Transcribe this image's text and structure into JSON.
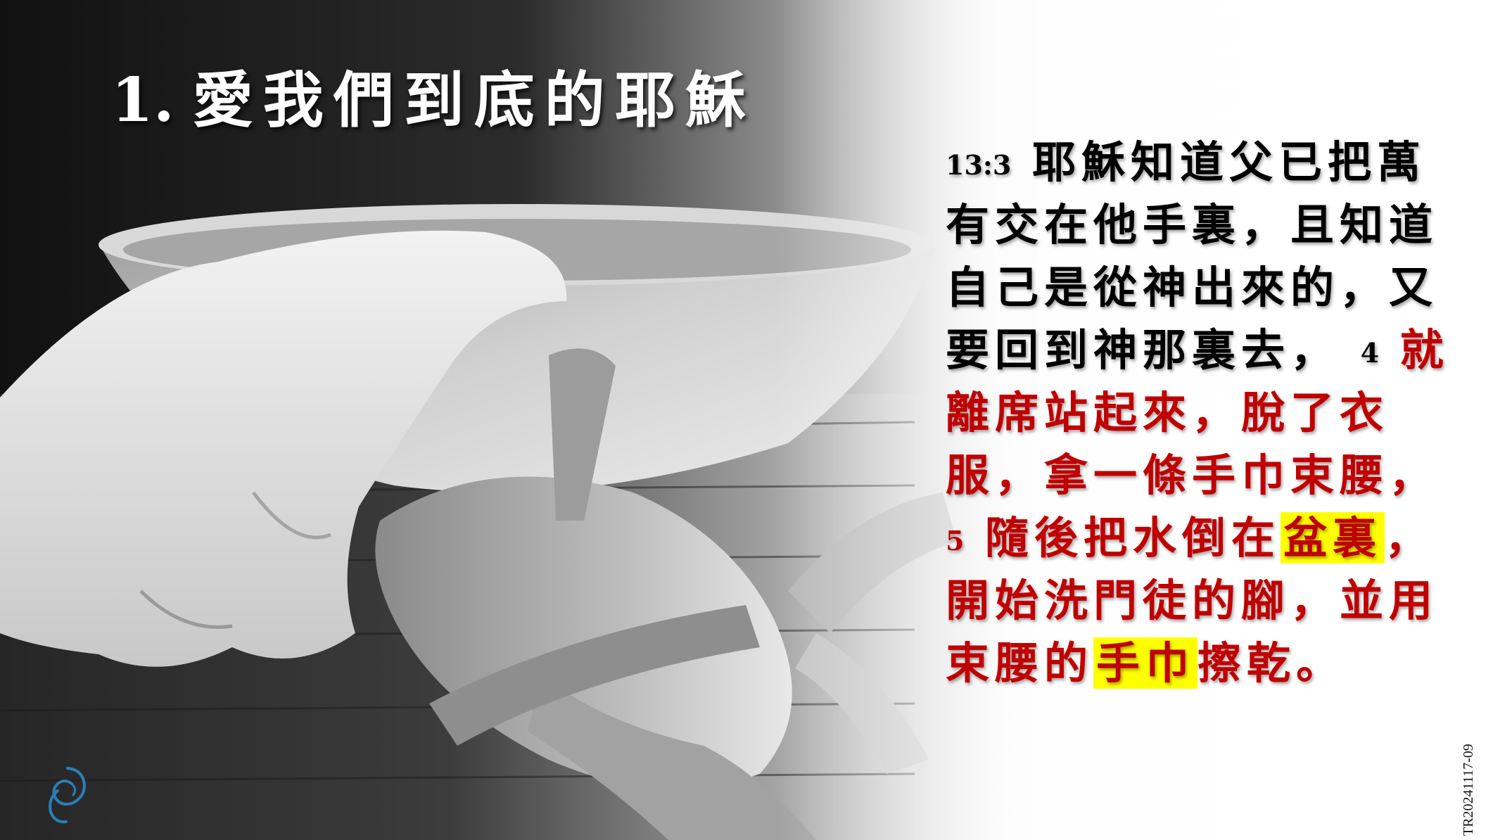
{
  "slide": {
    "title_number": "1.",
    "title": "愛我們到底的耶穌"
  },
  "verse": {
    "ref_13_3": "13:3",
    "black_1": "耶穌知道父已把萬有交在他手裏，且知道自己是從神出來的，又要回到神那裏去，",
    "ref_4": "4",
    "red_1": "就離席站起來，脫了衣服，拿一條手巾束腰，",
    "ref_5": "5",
    "red_2": "隨後把水倒在",
    "hl_1": "盆裏",
    "red_3": "，開始洗門徒的腳，並用束腰的",
    "hl_2": "手巾",
    "red_4": "擦乾。"
  },
  "footer": {
    "code": "TR20241117-09"
  },
  "colors": {
    "title": "#ffffff",
    "body_text": "#000000",
    "emphasis_text": "#c00000",
    "highlight": "#ffff00"
  },
  "icons": {
    "logo": "church-logo-icon"
  }
}
